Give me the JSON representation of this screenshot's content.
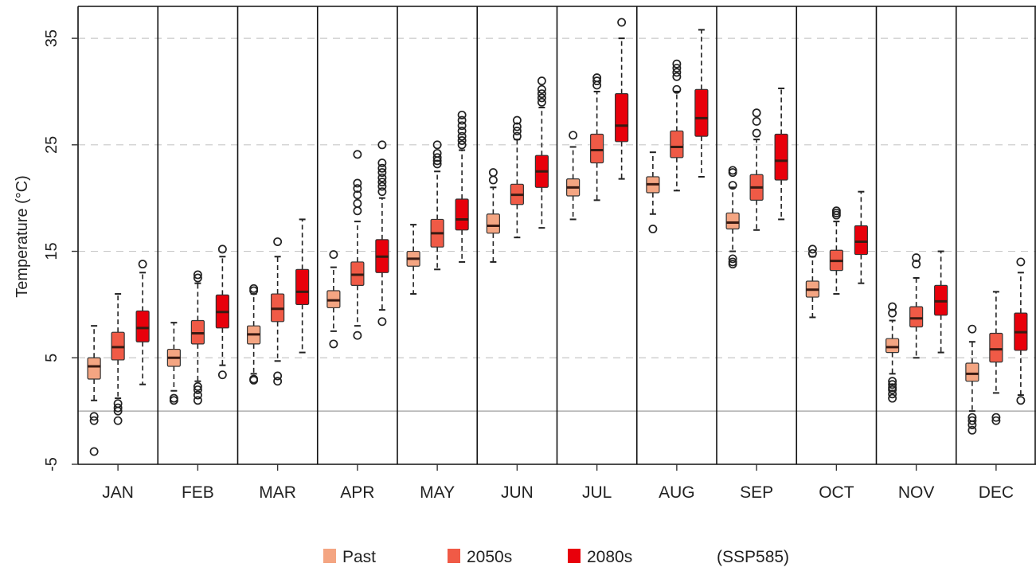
{
  "chart_data": {
    "type": "box",
    "title": "",
    "xlabel": "",
    "ylabel": "Temperature (°C)",
    "ylim": [
      -5,
      38
    ],
    "yticks": [
      -5,
      5,
      15,
      25,
      35
    ],
    "grid": "horizontal dashed at tick values",
    "reference_line": 0,
    "categories": [
      "JAN",
      "FEB",
      "MAR",
      "APR",
      "MAY",
      "JUN",
      "JUL",
      "AUG",
      "SEP",
      "OCT",
      "NOV",
      "DEC"
    ],
    "legend_position": "bottom",
    "annotation": "(SSP585)",
    "series": [
      {
        "name": "Past",
        "color": "#f4a582",
        "boxes": [
          {
            "whisker_low": 1.0,
            "q1": 3.0,
            "median": 4.2,
            "q3": 5.0,
            "whisker_high": 8.0,
            "outliers": [
              -0.5,
              -0.9,
              -3.8
            ]
          },
          {
            "whisker_low": 1.9,
            "q1": 4.2,
            "median": 5.0,
            "q3": 5.8,
            "whisker_high": 8.3,
            "outliers": [
              1.2,
              1.0
            ]
          },
          {
            "whisker_low": 3.5,
            "q1": 6.3,
            "median": 7.2,
            "q3": 8.0,
            "whisker_high": 11.0,
            "outliers": [
              11.5,
              11.3,
              3.0,
              2.9
            ]
          },
          {
            "whisker_low": 7.5,
            "q1": 9.7,
            "median": 10.4,
            "q3": 11.3,
            "whisker_high": 13.5,
            "outliers": [
              14.7,
              6.3
            ]
          },
          {
            "whisker_low": 11.0,
            "q1": 13.6,
            "median": 14.3,
            "q3": 15.0,
            "whisker_high": 17.5,
            "outliers": []
          },
          {
            "whisker_low": 14.0,
            "q1": 16.7,
            "median": 17.4,
            "q3": 18.5,
            "whisker_high": 21.0,
            "outliers": [
              22.4,
              21.7
            ]
          },
          {
            "whisker_low": 18.0,
            "q1": 20.2,
            "median": 21.0,
            "q3": 21.8,
            "whisker_high": 24.8,
            "outliers": [
              25.9
            ]
          },
          {
            "whisker_low": 18.5,
            "q1": 20.5,
            "median": 21.3,
            "q3": 22.0,
            "whisker_high": 24.3,
            "outliers": [
              17.1
            ]
          },
          {
            "whisker_low": 15.0,
            "q1": 17.1,
            "median": 17.7,
            "q3": 18.6,
            "whisker_high": 21.0,
            "outliers": [
              22.6,
              22.4,
              21.2,
              14.3,
              14.0,
              13.8
            ]
          },
          {
            "whisker_low": 8.8,
            "q1": 10.7,
            "median": 11.4,
            "q3": 12.2,
            "whisker_high": 14.5,
            "outliers": [
              15.2,
              14.8
            ]
          },
          {
            "whisker_low": 3.5,
            "q1": 5.5,
            "median": 6.0,
            "q3": 6.8,
            "whisker_high": 8.5,
            "outliers": [
              9.8,
              9.2,
              2.8,
              2.5,
              2.2,
              2.0,
              1.6,
              1.2
            ]
          },
          {
            "whisker_low": 0.0,
            "q1": 2.8,
            "median": 3.5,
            "q3": 4.5,
            "whisker_high": 6.5,
            "outliers": [
              7.7,
              -0.6,
              -0.9,
              -1.3,
              -1.8
            ]
          }
        ]
      },
      {
        "name": "2050s",
        "color": "#f05a46",
        "boxes": [
          {
            "whisker_low": 1.2,
            "q1": 4.8,
            "median": 6.0,
            "q3": 7.4,
            "whisker_high": 11.0,
            "outliers": [
              0.7,
              0.3,
              0.0,
              -0.9
            ]
          },
          {
            "whisker_low": 2.8,
            "q1": 6.3,
            "median": 7.3,
            "q3": 8.5,
            "whisker_high": 12.0,
            "outliers": [
              12.8,
              12.5,
              2.3,
              2.0,
              1.5,
              1.0
            ]
          },
          {
            "whisker_low": 4.7,
            "q1": 8.4,
            "median": 9.6,
            "q3": 11.0,
            "whisker_high": 14.5,
            "outliers": [
              15.9,
              3.3,
              2.8
            ]
          },
          {
            "whisker_low": 8.0,
            "q1": 11.8,
            "median": 12.8,
            "q3": 14.0,
            "whisker_high": 17.8,
            "outliers": [
              24.1,
              21.4,
              20.9,
              20.3,
              19.5,
              18.8,
              7.1
            ]
          },
          {
            "whisker_low": 13.3,
            "q1": 15.4,
            "median": 16.7,
            "q3": 18.0,
            "whisker_high": 22.5,
            "outliers": [
              25.0,
              24.2,
              23.8,
              23.5,
              23.2
            ]
          },
          {
            "whisker_low": 16.3,
            "q1": 19.4,
            "median": 20.3,
            "q3": 21.3,
            "whisker_high": 25.5,
            "outliers": [
              27.3,
              26.7,
              26.3,
              25.8
            ]
          },
          {
            "whisker_low": 19.8,
            "q1": 23.3,
            "median": 24.5,
            "q3": 26.0,
            "whisker_high": 30.0,
            "outliers": [
              31.3,
              31.0,
              30.6
            ]
          },
          {
            "whisker_low": 20.7,
            "q1": 23.8,
            "median": 24.8,
            "q3": 26.3,
            "whisker_high": 30.0,
            "outliers": [
              32.6,
              32.2,
              31.8,
              31.4,
              30.2
            ]
          },
          {
            "whisker_low": 17.0,
            "q1": 19.8,
            "median": 21.0,
            "q3": 22.2,
            "whisker_high": 25.5,
            "outliers": [
              28.0,
              27.2,
              26.1
            ]
          },
          {
            "whisker_low": 11.0,
            "q1": 13.2,
            "median": 14.1,
            "q3": 15.1,
            "whisker_high": 17.8,
            "outliers": [
              18.8,
              18.6,
              18.4
            ]
          },
          {
            "whisker_low": 5.0,
            "q1": 7.9,
            "median": 8.7,
            "q3": 9.8,
            "whisker_high": 12.5,
            "outliers": [
              14.4,
              13.8
            ]
          },
          {
            "whisker_low": 1.7,
            "q1": 4.6,
            "median": 5.8,
            "q3": 7.3,
            "whisker_high": 11.2,
            "outliers": [
              -0.6,
              -0.9
            ]
          }
        ]
      },
      {
        "name": "2080s",
        "color": "#e8000b",
        "boxes": [
          {
            "whisker_low": 2.5,
            "q1": 6.5,
            "median": 7.8,
            "q3": 9.4,
            "whisker_high": 13.0,
            "outliers": [
              13.8
            ]
          },
          {
            "whisker_low": 4.3,
            "q1": 7.8,
            "median": 9.3,
            "q3": 10.9,
            "whisker_high": 14.5,
            "outliers": [
              15.2,
              3.4
            ]
          },
          {
            "whisker_low": 5.5,
            "q1": 10.0,
            "median": 11.2,
            "q3": 13.3,
            "whisker_high": 18.0,
            "outliers": []
          },
          {
            "whisker_low": 9.5,
            "q1": 13.0,
            "median": 14.5,
            "q3": 16.1,
            "whisker_high": 20.0,
            "outliers": [
              25.0,
              23.3,
              22.8,
              22.4,
              21.9,
              21.5,
              21.1,
              20.6,
              8.4
            ]
          },
          {
            "whisker_low": 14.0,
            "q1": 17.0,
            "median": 18.0,
            "q3": 19.9,
            "whisker_high": 24.5,
            "outliers": [
              27.8,
              27.3,
              26.8,
              26.3,
              25.8,
              25.4,
              25.0
            ]
          },
          {
            "whisker_low": 17.2,
            "q1": 21.0,
            "median": 22.5,
            "q3": 24.0,
            "whisker_high": 28.5,
            "outliers": [
              31.0,
              30.2,
              29.8,
              29.4,
              29.0
            ]
          },
          {
            "whisker_low": 21.8,
            "q1": 25.3,
            "median": 26.8,
            "q3": 29.8,
            "whisker_high": 35.0,
            "outliers": [
              36.5
            ]
          },
          {
            "whisker_low": 22.0,
            "q1": 25.8,
            "median": 27.5,
            "q3": 30.2,
            "whisker_high": 35.8,
            "outliers": []
          },
          {
            "whisker_low": 18.0,
            "q1": 21.7,
            "median": 23.5,
            "q3": 26.0,
            "whisker_high": 30.3,
            "outliers": []
          },
          {
            "whisker_low": 12.0,
            "q1": 14.7,
            "median": 15.9,
            "q3": 17.4,
            "whisker_high": 20.6,
            "outliers": []
          },
          {
            "whisker_low": 5.5,
            "q1": 9.0,
            "median": 10.3,
            "q3": 11.8,
            "whisker_high": 15.0,
            "outliers": []
          },
          {
            "whisker_low": 1.5,
            "q1": 5.7,
            "median": 7.4,
            "q3": 9.2,
            "whisker_high": 13.0,
            "outliers": [
              14.0,
              1.0
            ]
          }
        ]
      }
    ]
  }
}
